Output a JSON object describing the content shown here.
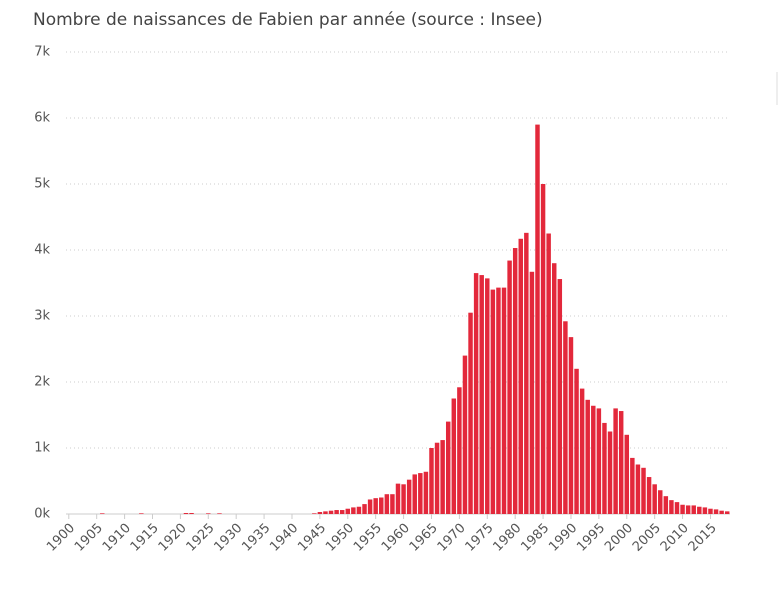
{
  "chart_data": {
    "type": "bar",
    "title": "Nombre de naissances de Fabien par année (source : Insee)",
    "x": [
      1900,
      1901,
      1902,
      1903,
      1904,
      1905,
      1906,
      1907,
      1908,
      1909,
      1910,
      1911,
      1912,
      1913,
      1914,
      1915,
      1916,
      1917,
      1918,
      1919,
      1920,
      1921,
      1922,
      1923,
      1924,
      1925,
      1926,
      1927,
      1928,
      1929,
      1930,
      1931,
      1932,
      1933,
      1934,
      1935,
      1936,
      1937,
      1938,
      1939,
      1940,
      1941,
      1942,
      1943,
      1944,
      1945,
      1946,
      1947,
      1948,
      1949,
      1950,
      1951,
      1952,
      1953,
      1954,
      1955,
      1956,
      1957,
      1958,
      1959,
      1960,
      1961,
      1962,
      1963,
      1964,
      1965,
      1966,
      1967,
      1968,
      1969,
      1970,
      1971,
      1972,
      1973,
      1974,
      1975,
      1976,
      1977,
      1978,
      1979,
      1980,
      1981,
      1982,
      1983,
      1984,
      1985,
      1986,
      1987,
      1988,
      1989,
      1990,
      1991,
      1992,
      1993,
      1994,
      1995,
      1996,
      1997,
      1998,
      1999,
      2000,
      2001,
      2002,
      2003,
      2004,
      2005,
      2006,
      2007,
      2008,
      2009,
      2010,
      2011,
      2012,
      2013,
      2014,
      2015,
      2016,
      2017,
      2018
    ],
    "values": [
      0,
      0,
      0,
      0,
      0,
      0,
      10,
      0,
      0,
      0,
      0,
      0,
      0,
      10,
      0,
      0,
      0,
      0,
      0,
      0,
      0,
      15,
      15,
      0,
      0,
      10,
      0,
      10,
      0,
      0,
      0,
      0,
      0,
      0,
      0,
      0,
      0,
      0,
      0,
      0,
      0,
      0,
      0,
      0,
      10,
      30,
      40,
      50,
      60,
      60,
      80,
      100,
      110,
      150,
      220,
      240,
      250,
      300,
      300,
      460,
      450,
      520,
      600,
      620,
      640,
      1000,
      1080,
      1120,
      1400,
      1750,
      1920,
      2400,
      3050,
      3650,
      3620,
      3570,
      3400,
      3430,
      3430,
      3840,
      4030,
      4170,
      4260,
      3670,
      5900,
      5000,
      4250,
      3800,
      3560,
      2920,
      2680,
      2200,
      1900,
      1730,
      1640,
      1600,
      1380,
      1250,
      1600,
      1560,
      1200,
      850,
      750,
      700,
      560,
      450,
      360,
      270,
      210,
      180,
      140,
      130,
      130,
      110,
      100,
      80,
      70,
      50,
      40
    ],
    "color": "#e3283b",
    "xlim": [
      1899.5,
      2018.5
    ],
    "xticks": [
      1900,
      1905,
      1910,
      1915,
      1920,
      1925,
      1930,
      1935,
      1940,
      1945,
      1950,
      1955,
      1960,
      1965,
      1970,
      1975,
      1980,
      1985,
      1990,
      1995,
      2000,
      2005,
      2010,
      2015
    ],
    "ylim": [
      0,
      7000
    ],
    "yticks": [
      {
        "value": 0,
        "label": "0k"
      },
      {
        "value": 1000,
        "label": "1k"
      },
      {
        "value": 2000,
        "label": "2k"
      },
      {
        "value": 3000,
        "label": "3k"
      },
      {
        "value": 4000,
        "label": "4k"
      },
      {
        "value": 5000,
        "label": "5k"
      },
      {
        "value": 6000,
        "label": "6k"
      },
      {
        "value": 7000,
        "label": "7k"
      }
    ],
    "grid": true
  }
}
